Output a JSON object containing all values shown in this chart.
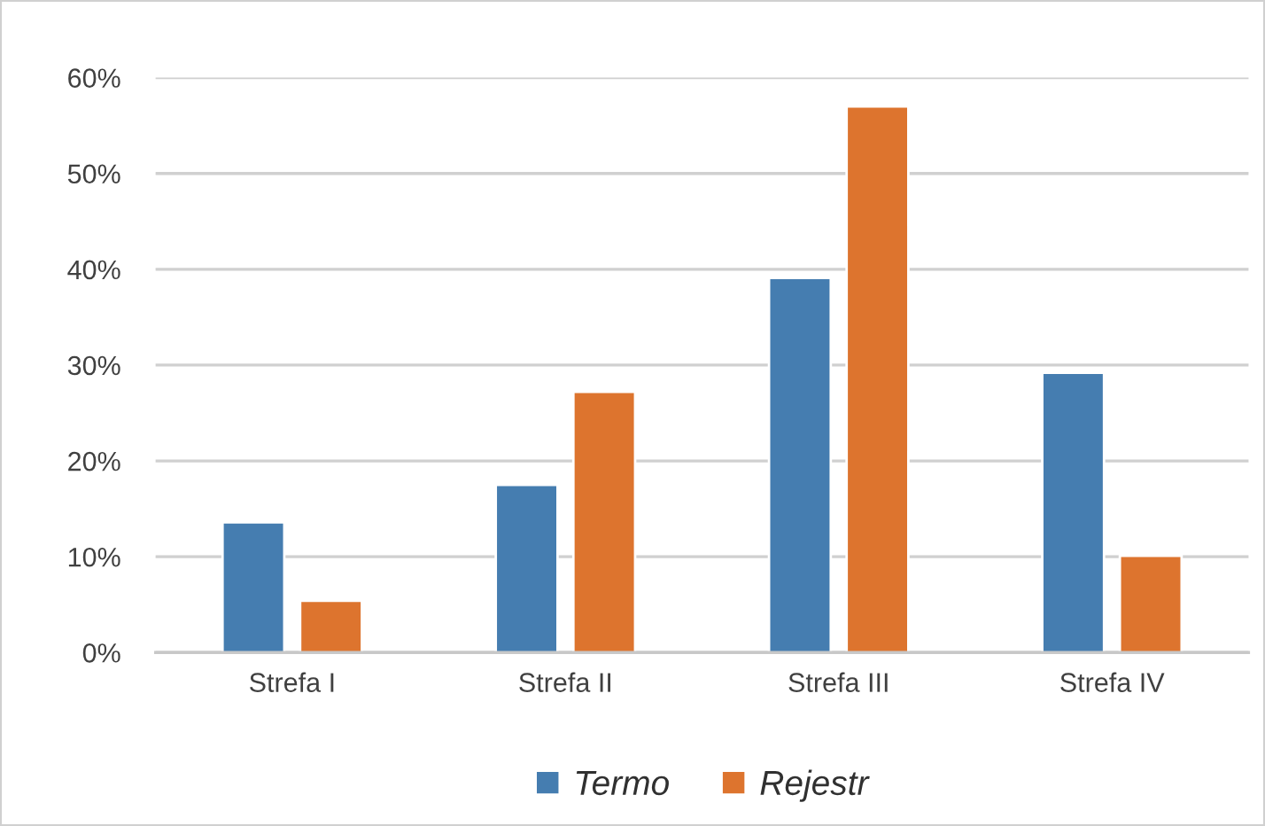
{
  "chart_data": {
    "type": "bar",
    "categories": [
      "Strefa I",
      "Strefa II",
      "Strefa III",
      "Strefa IV"
    ],
    "series": [
      {
        "name": "Termo",
        "color": "#457db0",
        "values": [
          13.6,
          17.5,
          39.1,
          29.2
        ]
      },
      {
        "name": "Rejestr",
        "color": "#dd742e",
        "values": [
          5.4,
          27.2,
          57,
          10.1
        ]
      }
    ],
    "ylim": [
      0,
      60
    ],
    "yticks": [
      {
        "value": 0,
        "label": "0%"
      },
      {
        "value": 10,
        "label": "10%"
      },
      {
        "value": 20,
        "label": "20%"
      },
      {
        "value": 30,
        "label": "30%"
      },
      {
        "value": 40,
        "label": "40%"
      },
      {
        "value": 50,
        "label": "50%"
      },
      {
        "value": 60,
        "label": "60%"
      }
    ],
    "grid": "y",
    "legend": "bottom"
  }
}
